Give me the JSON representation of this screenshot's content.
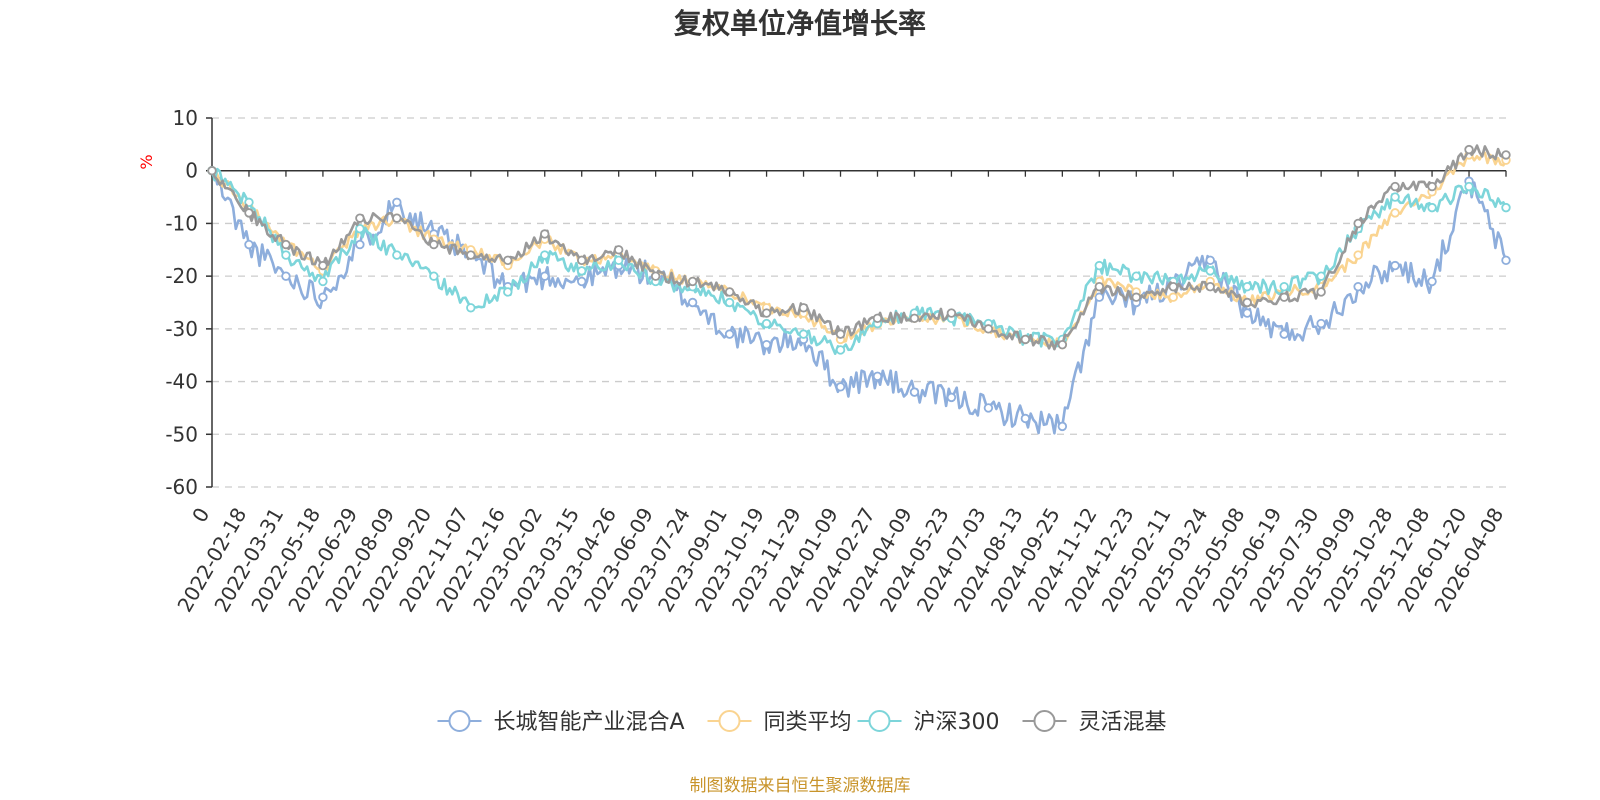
{
  "chart_data": {
    "type": "line",
    "title": "复权单位净值增长率",
    "ylabel": "%",
    "xlabel": "",
    "ylim": [
      -60,
      10
    ],
    "yticks": [
      10,
      0,
      -10,
      -20,
      -30,
      -40,
      -50,
      -60
    ],
    "grid": "horizontal dashed",
    "legend_position": "bottom-center",
    "categories": [
      "0",
      "2022-02-18",
      "2022-03-31",
      "2022-05-18",
      "2022-06-29",
      "2022-08-09",
      "2022-09-20",
      "2022-11-07",
      "2022-12-16",
      "2023-02-02",
      "2023-03-15",
      "2023-04-26",
      "2023-06-09",
      "2023-07-24",
      "2023-09-01",
      "2023-10-19",
      "2023-11-29",
      "2024-01-09",
      "2024-02-27",
      "2024-04-09",
      "2024-05-23",
      "2024-07-03",
      "2024-08-13",
      "2024-09-25",
      "2024-11-12",
      "2024-12-23",
      "2025-02-11",
      "2025-03-24",
      "2025-05-08",
      "2025-06-19",
      "2025-07-30",
      "2025-09-09",
      "2025-10-28",
      "2025-12-08",
      "2026-01-20",
      "2026-04-08"
    ],
    "series": [
      {
        "name": "长城智能产业混合A",
        "color": "#8eaedc",
        "values": [
          0,
          -14,
          -20,
          -24,
          -14,
          -6,
          -12,
          -16,
          -22,
          -20,
          -21,
          -18,
          -20,
          -25,
          -31,
          -33,
          -32,
          -41,
          -39,
          -42,
          -43,
          -45,
          -47,
          -48.5,
          -24,
          -25,
          -22,
          -17,
          -27,
          -31,
          -29,
          -22,
          -18,
          -21,
          -2,
          -17
        ]
      },
      {
        "name": "同类平均",
        "color": "#fad491",
        "values": [
          0,
          -7,
          -14,
          -19,
          -11,
          -9,
          -13,
          -15,
          -18,
          -13,
          -17,
          -16,
          -19,
          -21,
          -23,
          -26,
          -27,
          -32,
          -29,
          -28,
          -28,
          -30,
          -32,
          -33,
          -21,
          -23,
          -24,
          -21,
          -25,
          -23,
          -22,
          -16,
          -8,
          -4,
          3,
          2
        ]
      },
      {
        "name": "沪深300",
        "color": "#7dd5da",
        "values": [
          0,
          -6,
          -16,
          -21,
          -11,
          -16,
          -20,
          -26,
          -23,
          -16,
          -19,
          -17,
          -21,
          -22,
          -25,
          -29,
          -31,
          -34,
          -29,
          -27,
          -28,
          -29,
          -32,
          -32,
          -18,
          -20,
          -21,
          -19,
          -22,
          -22,
          -20,
          -11,
          -5,
          -7,
          -3,
          -7
        ]
      },
      {
        "name": "灵活混基",
        "color": "#999999",
        "values": [
          0,
          -8,
          -14,
          -18,
          -9,
          -9,
          -14,
          -16,
          -17,
          -12,
          -17,
          -15,
          -20,
          -21,
          -23,
          -27,
          -26,
          -31,
          -28,
          -28,
          -27,
          -30,
          -32,
          -33,
          -22,
          -24,
          -22,
          -22,
          -25,
          -24,
          -23,
          -10,
          -3,
          -3,
          4,
          3
        ]
      }
    ]
  },
  "footer": {
    "source_text": "制图数据来自恒生聚源数据库"
  }
}
